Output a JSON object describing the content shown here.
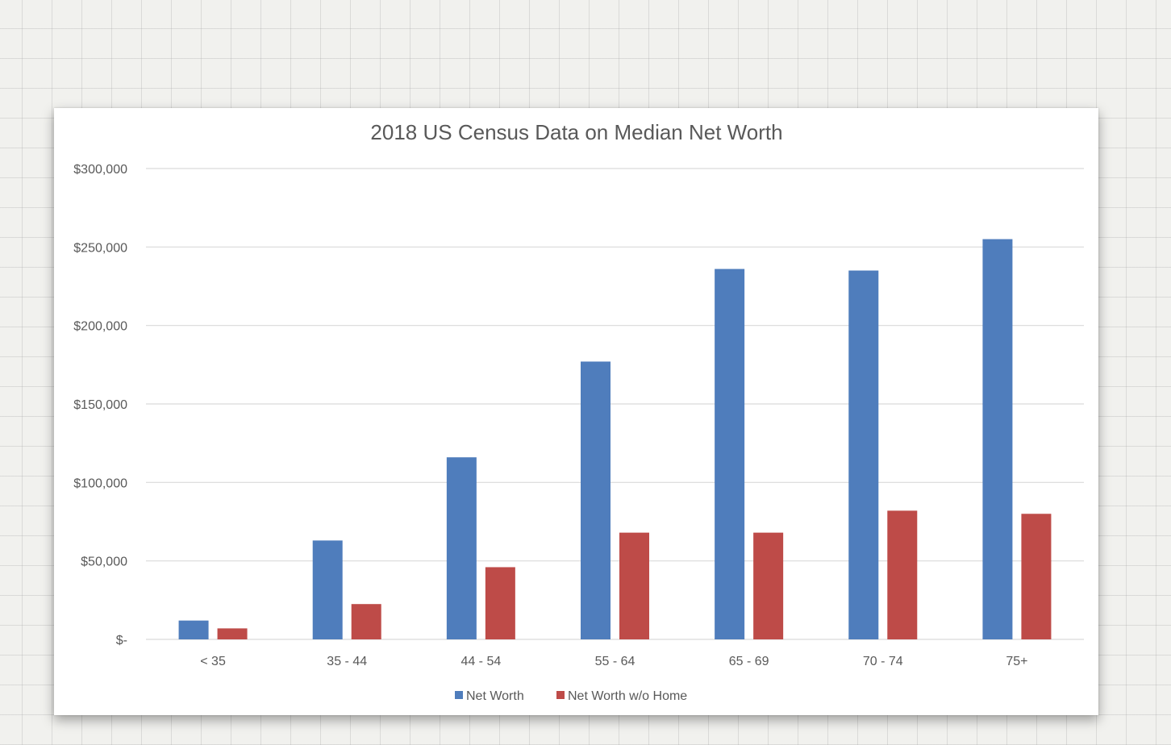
{
  "chart_data": {
    "type": "bar",
    "title": "2018 US Census Data on Median Net Worth",
    "xlabel": "",
    "ylabel": "",
    "categories": [
      "< 35",
      "35 - 44",
      "44 - 54",
      "55 - 64",
      "65 - 69",
      "70 - 74",
      "75+"
    ],
    "series": [
      {
        "name": "Net Worth",
        "color": "#4f7dbc",
        "values": [
          12000,
          63000,
          116000,
          177000,
          236000,
          235000,
          255000
        ]
      },
      {
        "name": "Net Worth w/o Home",
        "color": "#be4b48",
        "values": [
          7000,
          22500,
          46000,
          68000,
          68000,
          82000,
          80000
        ]
      }
    ],
    "ylim": [
      0,
      300000
    ],
    "yticks": [
      0,
      50000,
      100000,
      150000,
      200000,
      250000,
      300000
    ],
    "ytick_labels": [
      "$-",
      "$50,000",
      "$100,000",
      "$150,000",
      "$200,000",
      "$250,000",
      "$300,000"
    ],
    "grid": true,
    "legend_position": "bottom"
  }
}
